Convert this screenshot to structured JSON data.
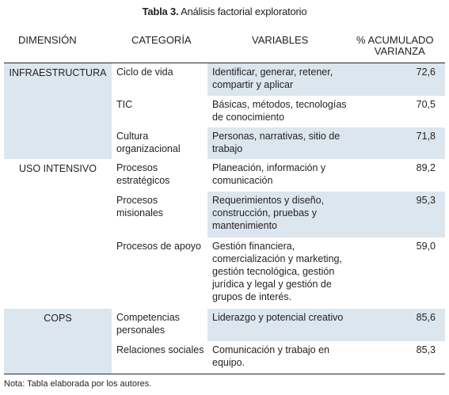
{
  "caption": {
    "label": "Tabla 3.",
    "title": "Análisis factorial exploratorio"
  },
  "headers": {
    "dimension": "DIMENSIÓN",
    "categoria": "CATEGORÍA",
    "variables": "VARIABLES",
    "varianza_line1": "% ACUMULADO",
    "varianza_line2": "VARIANZA"
  },
  "dimensions": [
    "INFRAESTRUCTURA",
    "USO INTENSIVO",
    "COPS"
  ],
  "rows": [
    {
      "categoria": "Ciclo de vida",
      "variables": "Identificar, generar, retener, compartir y aplicar",
      "varianza": "72,6"
    },
    {
      "categoria": "TIC",
      "variables": "Básicas, métodos, tecnologías de conocimiento",
      "varianza": "70,5"
    },
    {
      "categoria": "Cultura organizacional",
      "variables": "Personas, narrativas, sitio de trabajo",
      "varianza": "71,8"
    },
    {
      "categoria": "Procesos estratégicos",
      "variables": "Planeación, información y comunicación",
      "varianza": "89,2"
    },
    {
      "categoria": "Procesos misionales",
      "variables": "Requerimientos y diseño, construcción, pruebas y mantenimiento",
      "varianza": "95,3"
    },
    {
      "categoria": "Procesos de apoyo",
      "variables": "Gestión financiera, comercialización y marketing, gestión tecnológica, gestión jurídica y legal y gestión de grupos de interés.",
      "varianza": "59,0"
    },
    {
      "categoria": "Competencias personales",
      "variables": "Liderazgo y potencial creativo",
      "varianza": "85,6"
    },
    {
      "categoria": "Relaciones sociales",
      "variables": "Comunicación y trabajo en equipo.",
      "varianza": "85,3"
    }
  ],
  "note": "Nota: Tabla elaborada por los autores.",
  "colors": {
    "shade": "#dce6ee",
    "text": "#231f20"
  }
}
